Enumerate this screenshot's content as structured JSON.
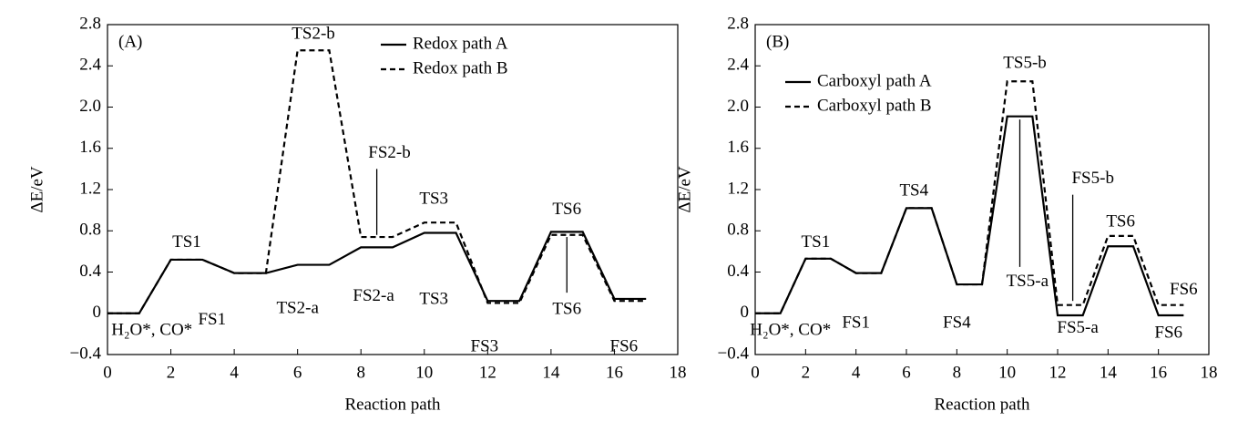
{
  "chart_data": [
    {
      "type": "line",
      "panel_label": "(A)",
      "xlabel": "Reaction path",
      "ylabel": "ΔE/eV",
      "x": [
        0,
        1,
        2,
        3,
        4,
        5,
        6,
        7,
        8,
        9,
        10,
        11,
        12,
        13,
        14,
        15,
        16,
        17
      ],
      "series": [
        {
          "name": "Redox path A",
          "color": "#000000",
          "dash": "solid",
          "values": [
            0,
            0,
            0.52,
            0.52,
            0.39,
            0.39,
            0.47,
            0.47,
            0.64,
            0.64,
            0.78,
            0.78,
            0.12,
            0.12,
            0.79,
            0.79,
            0.14,
            0.14
          ]
        },
        {
          "name": "Redox path B",
          "color": "#000000",
          "dash": "dashed",
          "values": [
            0,
            0,
            0.52,
            0.52,
            0.39,
            0.39,
            2.55,
            2.55,
            0.74,
            0.74,
            0.88,
            0.88,
            0.1,
            0.1,
            0.76,
            0.76,
            0.12,
            0.12
          ]
        }
      ],
      "xlim": [
        0,
        18
      ],
      "ylim": [
        -0.4,
        2.8
      ],
      "xticks": [
        0,
        2,
        4,
        6,
        8,
        10,
        12,
        14,
        16,
        18
      ],
      "yticks": [
        {
          "value": -0.4,
          "label": "−0.4"
        },
        0,
        0.4,
        0.8,
        1.2,
        1.6,
        {
          "value": 2,
          "label": "2.0"
        },
        2.4,
        2.8
      ],
      "legend": "upper right",
      "annotations": [
        "TS2-b",
        "TS1",
        "FS1",
        "TS2-a",
        "FS2-a",
        "TS3",
        "TS3",
        "FS2-b",
        "TS6",
        "TS6",
        "FS3",
        "FS6",
        "H₂O*, CO*"
      ]
    },
    {
      "type": "line",
      "panel_label": "(B)",
      "xlabel": "Reaction path",
      "ylabel": "ΔE/eV",
      "x": [
        0,
        1,
        2,
        3,
        4,
        5,
        6,
        7,
        8,
        9,
        10,
        11,
        12,
        13,
        14,
        15,
        16,
        17
      ],
      "series": [
        {
          "name": "Carboxyl path A",
          "color": "#000000",
          "dash": "solid",
          "values": [
            0,
            0,
            0.53,
            0.53,
            0.39,
            0.39,
            1.02,
            1.02,
            0.28,
            0.28,
            1.91,
            1.91,
            -0.02,
            -0.02,
            0.65,
            0.65,
            -0.02,
            -0.02
          ]
        },
        {
          "name": "Carboxyl path B",
          "color": "#000000",
          "dash": "dashed",
          "values": [
            0,
            0,
            0.53,
            0.53,
            0.39,
            0.39,
            1.02,
            1.02,
            0.28,
            0.28,
            2.25,
            2.25,
            0.08,
            0.08,
            0.75,
            0.75,
            0.08,
            0.08
          ]
        }
      ],
      "xlim": [
        0,
        18
      ],
      "ylim": [
        -0.4,
        2.8
      ],
      "xticks": [
        0,
        2,
        4,
        6,
        8,
        10,
        12,
        14,
        16,
        18
      ],
      "yticks": [
        {
          "value": -0.4,
          "label": "−0.4"
        },
        0,
        0.4,
        0.8,
        1.2,
        1.6,
        {
          "value": 2,
          "label": "2.0"
        },
        2.4,
        2.8
      ],
      "legend": "upper left",
      "annotations": [
        "TS1",
        "FS1",
        "TS4",
        "FS4",
        "TS5-b",
        "TS5-a",
        "FS5-b",
        "FS5-a",
        "TS6",
        "FS6",
        "FS6",
        "H₂O*, CO*"
      ]
    }
  ]
}
